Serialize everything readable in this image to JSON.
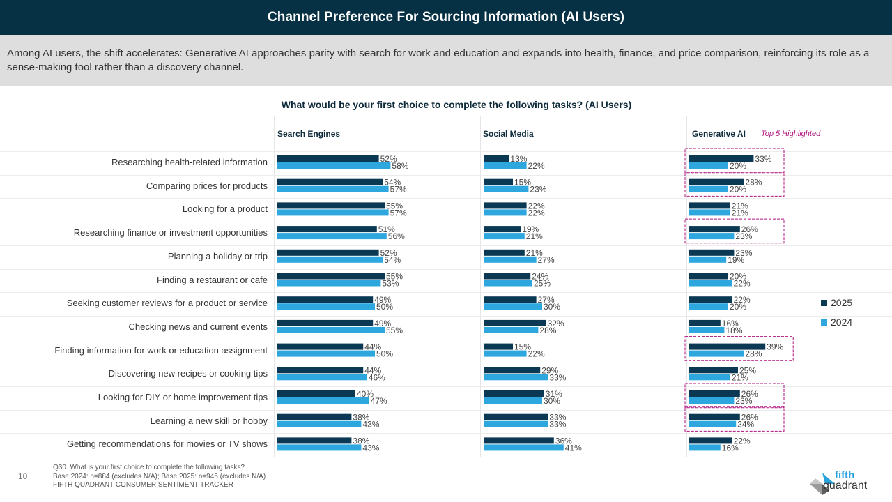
{
  "header": {
    "title": "Channel Preference For Sourcing Information (AI Users)",
    "subtitle": "Among AI users, the shift accelerates: Generative AI approaches parity with search for work and education and expands into health, finance, and price comparison, reinforcing its role as a sense-making tool rather than a discovery channel."
  },
  "footer": {
    "page_number": "10",
    "notes": [
      "Q30. What is your first choice to complete the following tasks?",
      "Base 2024: n=884 (excludes N/A); Base 2025: n=945 (excludes N/A)",
      "FIFTH QUADRANT CONSUMER SENTIMENT TRACKER"
    ],
    "logo": {
      "line1": "fifth",
      "line2": "quadrant",
      "icon": "fifth-quadrant-logo-icon"
    }
  },
  "colors": {
    "series_2025": "#0b3954",
    "series_2024": "#2ea7df",
    "highlight": "#b0127f"
  },
  "chart_data": {
    "type": "bar",
    "orientation": "horizontal",
    "title": "What would be your first choice to complete the following tasks? (AI Users)",
    "unit": "%",
    "highlight_note": "Top 5 Highlighted",
    "legend": {
      "placement": "right",
      "entries": [
        "2025",
        "2024"
      ]
    },
    "categories": [
      "Researching health-related information",
      "Comparing prices for products",
      "Looking for a product",
      "Researching finance or investment opportunities",
      "Planning a holiday or trip",
      "Finding a restaurant or cafe",
      "Seeking customer reviews for a product or service",
      "Checking news and current events",
      "Finding information for work or education assignment",
      "Discovering new recipes or cooking tips",
      "Looking for DIY or home improvement tips",
      "Learning a new skill or hobby",
      "Getting recommendations for movies or TV shows"
    ],
    "panels": [
      {
        "name": "Search Engines",
        "series": [
          {
            "name": "2025",
            "values": [
              52,
              54,
              55,
              51,
              52,
              55,
              49,
              49,
              44,
              44,
              40,
              38,
              38
            ]
          },
          {
            "name": "2024",
            "values": [
              58,
              57,
              57,
              56,
              54,
              53,
              50,
              55,
              50,
              46,
              47,
              43,
              43
            ]
          }
        ],
        "highlighted_rows": []
      },
      {
        "name": "Social Media",
        "series": [
          {
            "name": "2025",
            "values": [
              13,
              15,
              22,
              19,
              21,
              24,
              27,
              32,
              15,
              29,
              31,
              33,
              36
            ]
          },
          {
            "name": "2024",
            "values": [
              22,
              23,
              22,
              21,
              27,
              25,
              30,
              28,
              22,
              33,
              30,
              33,
              41
            ]
          }
        ],
        "highlighted_rows": []
      },
      {
        "name": "Generative AI",
        "series": [
          {
            "name": "2025",
            "values": [
              33,
              28,
              21,
              26,
              23,
              20,
              22,
              16,
              39,
              25,
              26,
              26,
              22
            ]
          },
          {
            "name": "2024",
            "values": [
              20,
              20,
              21,
              23,
              19,
              22,
              20,
              18,
              28,
              21,
              23,
              24,
              16
            ]
          }
        ],
        "highlighted_rows": [
          0,
          1,
          3,
          8,
          10,
          11
        ]
      }
    ]
  }
}
